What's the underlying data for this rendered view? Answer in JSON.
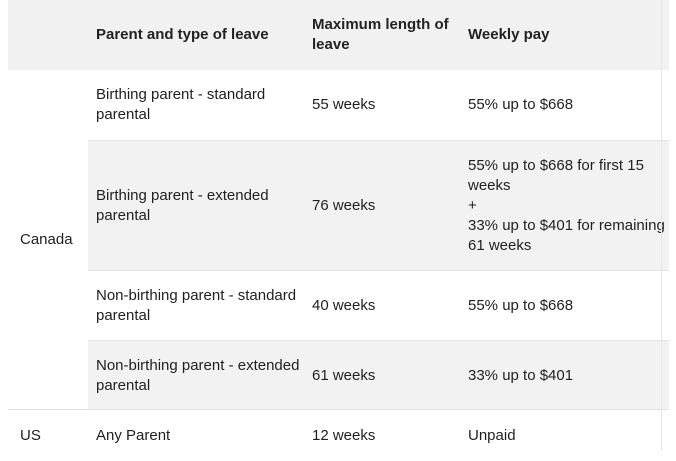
{
  "headers": {
    "col1": "Parent and type of leave",
    "col2": "Maximum length of leave",
    "col3": "Weekly pay"
  },
  "countries": {
    "canada": "Canada",
    "us": "US"
  },
  "rows": [
    {
      "type": "Birthing parent - standard parental",
      "length": "55 weeks",
      "pay": "55% up to $668"
    },
    {
      "type": "Birthing parent - extended parental",
      "length": "76 weeks",
      "pay_lines": [
        "55% up to $668 for first 15 weeks",
        "+",
        "33% up to $401 for remaining 61 weeks"
      ]
    },
    {
      "type": "Non-birthing parent - standard parental",
      "length": "40 weeks",
      "pay": "55% up to $668"
    },
    {
      "type": "Non-birthing parent - extended parental",
      "length": "61 weeks",
      "pay": "33% up to $401"
    },
    {
      "type": "Any Parent",
      "length": "12 weeks",
      "pay": "Unpaid"
    }
  ]
}
